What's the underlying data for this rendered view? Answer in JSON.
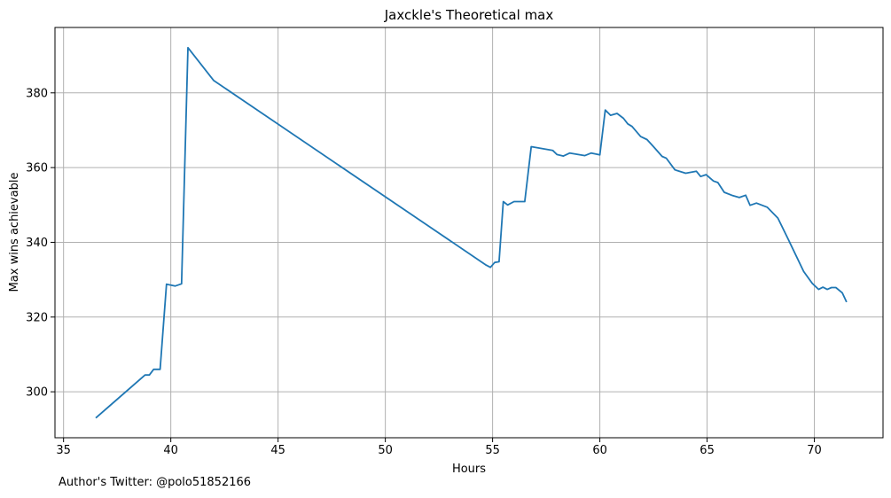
{
  "chart_data": {
    "type": "line",
    "title": "Jaxckle's Theoretical max",
    "xlabel": "Hours",
    "ylabel": "Max wins achievable",
    "xlim": [
      34.6,
      73.2
    ],
    "ylim": [
      287.7,
      397.5
    ],
    "xticks": [
      35,
      40,
      45,
      50,
      55,
      60,
      65,
      70
    ],
    "yticks": [
      300,
      320,
      340,
      360,
      380
    ],
    "grid": true,
    "series_color": "#1f77b4",
    "series": [
      {
        "x": [
          36.5,
          38.8,
          39.0,
          39.2,
          39.5,
          39.8,
          40.2,
          40.5,
          40.8,
          42.0,
          54.7,
          54.9,
          55.1,
          55.3,
          55.5,
          55.7,
          56.0,
          56.5,
          56.8,
          57.8,
          58.0,
          58.3,
          58.6,
          59.3,
          59.6,
          60.0,
          60.25,
          60.5,
          60.8,
          61.1,
          61.3,
          61.5,
          61.9,
          62.2,
          62.5,
          62.9,
          63.1,
          63.5,
          64.0,
          64.5,
          64.7,
          64.95,
          65.3,
          65.5,
          65.8,
          66.2,
          66.5,
          66.8,
          67.0,
          67.3,
          67.8,
          68.3,
          68.8,
          69.5,
          69.9,
          70.2,
          70.4,
          70.6,
          70.8,
          71.0,
          71.3,
          71.5
        ],
        "y": [
          293.0,
          304.5,
          304.5,
          306.0,
          306.0,
          328.8,
          328.3,
          328.9,
          392.1,
          383.3,
          333.9,
          333.3,
          334.6,
          334.8,
          350.9,
          350.0,
          350.9,
          350.9,
          365.6,
          364.6,
          363.5,
          363.1,
          363.9,
          363.2,
          363.9,
          363.4,
          375.4,
          374.0,
          374.5,
          373.2,
          371.7,
          371.0,
          368.3,
          367.5,
          365.6,
          363.0,
          362.5,
          359.4,
          358.5,
          359.0,
          357.6,
          358.1,
          356.4,
          356.0,
          353.4,
          352.5,
          352.0,
          352.6,
          349.9,
          350.5,
          349.4,
          346.5,
          340.6,
          332.2,
          329.0,
          327.4,
          328.0,
          327.4,
          327.9,
          327.9,
          326.5,
          324.0
        ]
      }
    ],
    "footer": "Author's Twitter: @polo51852166"
  }
}
